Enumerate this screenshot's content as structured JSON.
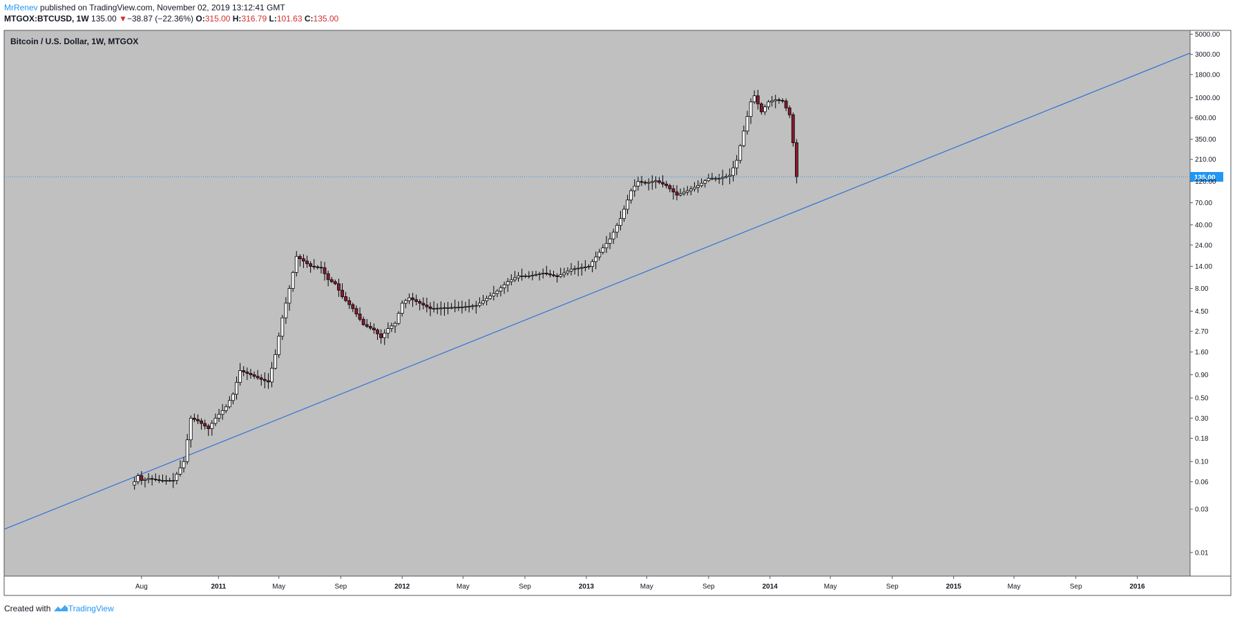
{
  "header": {
    "author": "MrRenev",
    "published_text": "published on TradingView.com, November 02, 2019 13:12:41 GMT",
    "symbol": "MTGOX:BTCUSD, 1W",
    "last": "135.00",
    "change_arrow": "▼",
    "change": "−38.87 (−22.36%)",
    "o_label": "O:",
    "o_value": "315.00",
    "h_label": "H:",
    "h_value": "316.79",
    "l_label": "L:",
    "l_value": "101.63",
    "c_label": "C:",
    "c_value": "135.00"
  },
  "footer": {
    "created_with": "Created with",
    "brand": "TradingView"
  },
  "colors": {
    "pane_bg": "#c0c0c0",
    "up": "#ffffff",
    "down": "#8a1a2e",
    "trendline": "#2f6fd8",
    "price_line": "#2196f3",
    "label_bg": "#2196f3"
  },
  "chart_data": {
    "type": "candlestick",
    "title": "Bitcoin / U.S. Dollar, 1W, MTGOX",
    "y_scale": "log",
    "ylim": [
      0.0055,
      5500
    ],
    "y_ticks": [
      "5000.00",
      "3000.00",
      "1800.00",
      "1000.00",
      "600.00",
      "350.00",
      "210.00",
      "120.00",
      "70.00",
      "40.00",
      "24.00",
      "14.00",
      "8.00",
      "4.50",
      "2.70",
      "1.60",
      "0.90",
      "0.50",
      "0.30",
      "0.18",
      "0.10",
      "0.06",
      "0.03",
      "0.01"
    ],
    "x_range": [
      "2009-11-01",
      "2016-04-15"
    ],
    "x_ticks": [
      {
        "date": "2010-08-01",
        "label": "Aug",
        "bold": false
      },
      {
        "date": "2011-01-01",
        "label": "2011",
        "bold": true
      },
      {
        "date": "2011-05-01",
        "label": "May",
        "bold": false
      },
      {
        "date": "2011-09-01",
        "label": "Sep",
        "bold": false
      },
      {
        "date": "2012-01-01",
        "label": "2012",
        "bold": true
      },
      {
        "date": "2012-05-01",
        "label": "May",
        "bold": false
      },
      {
        "date": "2012-09-01",
        "label": "Sep",
        "bold": false
      },
      {
        "date": "2013-01-01",
        "label": "2013",
        "bold": true
      },
      {
        "date": "2013-05-01",
        "label": "May",
        "bold": false
      },
      {
        "date": "2013-09-01",
        "label": "Sep",
        "bold": false
      },
      {
        "date": "2014-01-01",
        "label": "2014",
        "bold": true
      },
      {
        "date": "2014-05-01",
        "label": "May",
        "bold": false
      },
      {
        "date": "2014-09-01",
        "label": "Sep",
        "bold": false
      },
      {
        "date": "2015-01-01",
        "label": "2015",
        "bold": true
      },
      {
        "date": "2015-05-01",
        "label": "May",
        "bold": false
      },
      {
        "date": "2015-09-01",
        "label": "Sep",
        "bold": false
      },
      {
        "date": "2016-01-01",
        "label": "2016",
        "bold": true
      }
    ],
    "last_price": 135.0,
    "last_price_label": "135.00",
    "trendline": {
      "start": {
        "date": "2009-11-01",
        "price": 0.018
      },
      "end": {
        "date": "2016-04-15",
        "price": 3100
      }
    },
    "closes": [
      {
        "date": "2010-07-18",
        "close": 0.06
      },
      {
        "date": "2010-07-25",
        "close": 0.07
      },
      {
        "date": "2010-08-01",
        "close": 0.062
      },
      {
        "date": "2010-08-15",
        "close": 0.065
      },
      {
        "date": "2010-09-05",
        "close": 0.062
      },
      {
        "date": "2010-10-03",
        "close": 0.062
      },
      {
        "date": "2010-10-24",
        "close": 0.1
      },
      {
        "date": "2010-11-07",
        "close": 0.3
      },
      {
        "date": "2010-11-21",
        "close": 0.28
      },
      {
        "date": "2010-12-12",
        "close": 0.23
      },
      {
        "date": "2010-12-26",
        "close": 0.3
      },
      {
        "date": "2011-01-16",
        "close": 0.4
      },
      {
        "date": "2011-01-30",
        "close": 0.55
      },
      {
        "date": "2011-02-13",
        "close": 1.0
      },
      {
        "date": "2011-03-06",
        "close": 0.9
      },
      {
        "date": "2011-03-27",
        "close": 0.8
      },
      {
        "date": "2011-04-10",
        "close": 0.75
      },
      {
        "date": "2011-04-24",
        "close": 1.5
      },
      {
        "date": "2011-05-08",
        "close": 3.8
      },
      {
        "date": "2011-05-22",
        "close": 8.0
      },
      {
        "date": "2011-06-05",
        "close": 18
      },
      {
        "date": "2011-06-19",
        "close": 16
      },
      {
        "date": "2011-07-03",
        "close": 14
      },
      {
        "date": "2011-07-24",
        "close": 13.5
      },
      {
        "date": "2011-08-07",
        "close": 10
      },
      {
        "date": "2011-08-21",
        "close": 9
      },
      {
        "date": "2011-09-04",
        "close": 6.5
      },
      {
        "date": "2011-09-25",
        "close": 4.8
      },
      {
        "date": "2011-10-16",
        "close": 3.2
      },
      {
        "date": "2011-11-06",
        "close": 2.8
      },
      {
        "date": "2011-11-20",
        "close": 2.3
      },
      {
        "date": "2011-12-04",
        "close": 2.9
      },
      {
        "date": "2011-12-18",
        "close": 3.3
      },
      {
        "date": "2012-01-01",
        "close": 5.5
      },
      {
        "date": "2012-01-15",
        "close": 6.3
      },
      {
        "date": "2012-02-05",
        "close": 5.5
      },
      {
        "date": "2012-02-26",
        "close": 4.8
      },
      {
        "date": "2012-03-25",
        "close": 4.9
      },
      {
        "date": "2012-04-29",
        "close": 5.0
      },
      {
        "date": "2012-05-27",
        "close": 5.2
      },
      {
        "date": "2012-06-17",
        "close": 6.2
      },
      {
        "date": "2012-07-08",
        "close": 7.5
      },
      {
        "date": "2012-07-29",
        "close": 9.5
      },
      {
        "date": "2012-08-19",
        "close": 11
      },
      {
        "date": "2012-09-09",
        "close": 11
      },
      {
        "date": "2012-10-07",
        "close": 11.8
      },
      {
        "date": "2012-11-04",
        "close": 10.8
      },
      {
        "date": "2012-12-02",
        "close": 13
      },
      {
        "date": "2013-01-06",
        "close": 14
      },
      {
        "date": "2013-01-27",
        "close": 20
      },
      {
        "date": "2013-02-17",
        "close": 28
      },
      {
        "date": "2013-03-10",
        "close": 47
      },
      {
        "date": "2013-03-31",
        "close": 95
      },
      {
        "date": "2013-04-14",
        "close": 120
      },
      {
        "date": "2013-04-28",
        "close": 115
      },
      {
        "date": "2013-05-19",
        "close": 122
      },
      {
        "date": "2013-06-09",
        "close": 108
      },
      {
        "date": "2013-06-30",
        "close": 85
      },
      {
        "date": "2013-07-21",
        "close": 95
      },
      {
        "date": "2013-08-11",
        "close": 108
      },
      {
        "date": "2013-09-01",
        "close": 130
      },
      {
        "date": "2013-09-22",
        "close": 130
      },
      {
        "date": "2013-10-13",
        "close": 140
      },
      {
        "date": "2013-10-27",
        "close": 205
      },
      {
        "date": "2013-11-10",
        "close": 430
      },
      {
        "date": "2013-11-24",
        "close": 900
      },
      {
        "date": "2013-12-01",
        "close": 1050
      },
      {
        "date": "2013-12-15",
        "close": 700
      },
      {
        "date": "2013-12-29",
        "close": 900
      },
      {
        "date": "2014-01-12",
        "close": 950
      },
      {
        "date": "2014-01-26",
        "close": 920
      },
      {
        "date": "2014-02-09",
        "close": 650
      },
      {
        "date": "2014-02-16",
        "close": 320
      },
      {
        "date": "2014-02-23",
        "close": 135
      }
    ]
  }
}
